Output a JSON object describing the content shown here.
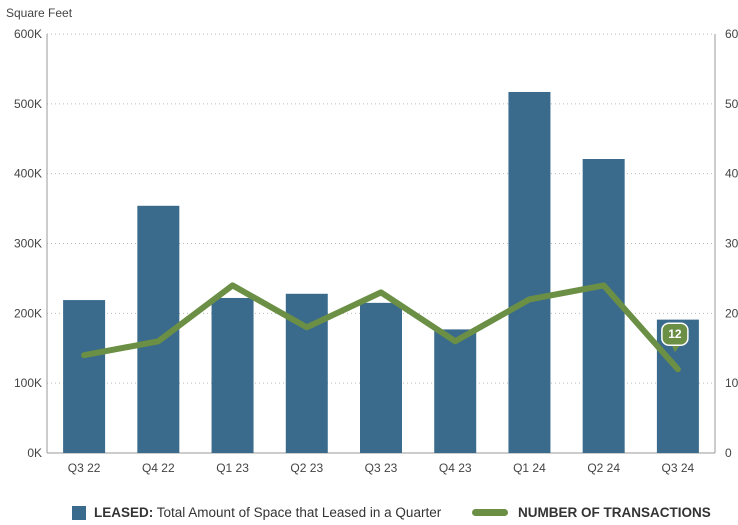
{
  "chart_data": {
    "type": "bar",
    "y_axis_title": "Square Feet",
    "categories": [
      "Q3 22",
      "Q4 22",
      "Q1 23",
      "Q2 23",
      "Q3 23",
      "Q4 23",
      "Q1 24",
      "Q2 24",
      "Q3 24"
    ],
    "y_left": {
      "range": [
        0,
        600000
      ],
      "ticks": [
        0,
        100000,
        200000,
        300000,
        400000,
        500000,
        600000
      ],
      "tick_labels": [
        "0K",
        "100K",
        "200K",
        "300K",
        "400K",
        "500K",
        "600K"
      ]
    },
    "y_right": {
      "range": [
        0,
        60
      ],
      "ticks": [
        0,
        10,
        20,
        30,
        40,
        50,
        60
      ],
      "tick_labels": [
        "0",
        "10",
        "20",
        "30",
        "40",
        "50",
        "60"
      ]
    },
    "series": [
      {
        "name": "LEASED: Total Amount of Space that Leased in a Quarter",
        "type": "bar",
        "axis": "left",
        "color": "#3a6b8c",
        "values": [
          219000,
          354000,
          222000,
          228000,
          215000,
          177000,
          517000,
          421000,
          191000
        ]
      },
      {
        "name": "NUMBER OF TRANSACTIONS",
        "type": "line",
        "axis": "right",
        "color": "#6b8f45",
        "values": [
          14,
          16,
          24,
          18,
          23,
          16,
          22,
          24,
          12
        ]
      }
    ],
    "callout": {
      "category": "Q3 24",
      "value": 12,
      "label": "12"
    },
    "grid": "horizontal-dotted",
    "legend_position": "bottom"
  },
  "legend": {
    "bar_bold": "LEASED:",
    "bar_text": " Total Amount of Space that Leased in a Quarter",
    "line_text": "NUMBER OF TRANSACTIONS"
  }
}
